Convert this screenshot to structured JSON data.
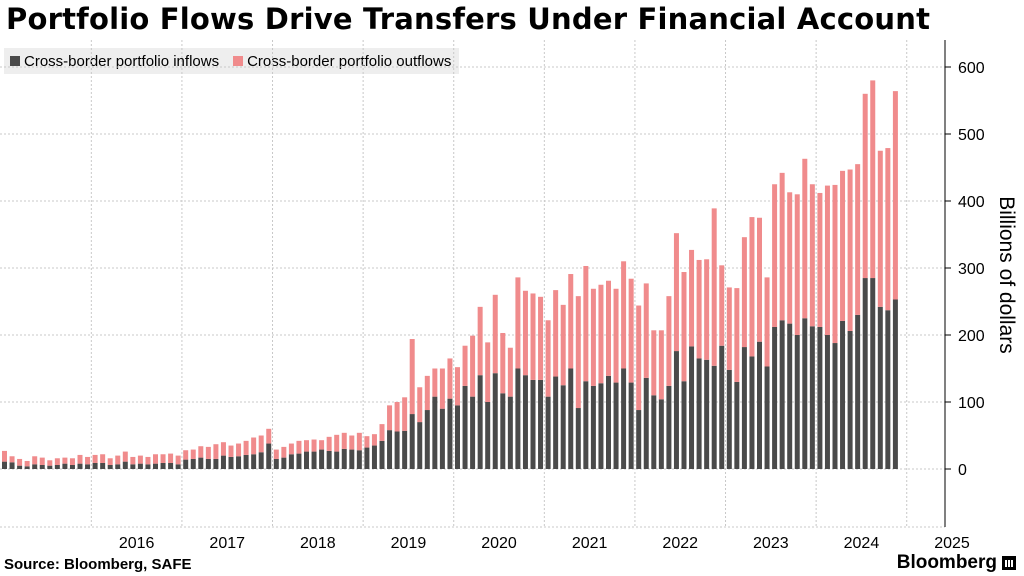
{
  "title": "Portfolio Flows Drive Transfers Under Financial Account",
  "source": "Source: Bloomberg, SAFE",
  "brand": "Bloomberg",
  "colors": {
    "inflows": "#4a4a4a",
    "outflows": "#f08b8c",
    "grid": "#c8c8c8",
    "axis": "#000000"
  },
  "chart_data": {
    "type": "bar",
    "stacked": true,
    "ylabel": "Billions of dollars",
    "ylim": [
      -55,
      640
    ],
    "yticks": [
      0,
      100,
      200,
      300,
      400,
      500,
      600
    ],
    "xticks": [
      "2016",
      "2017",
      "2018",
      "2019",
      "2020",
      "2021",
      "2022",
      "2023",
      "2024",
      "2025"
    ],
    "start": "2015-01",
    "frequency": "monthly",
    "legend_position": "top-left",
    "grid": true,
    "series": [
      {
        "name": "Cross-border portfolio inflows",
        "values": [
          11,
          10,
          5,
          4,
          7,
          6,
          5,
          6,
          8,
          6,
          8,
          7,
          9,
          9,
          6,
          7,
          11,
          7,
          8,
          7,
          8,
          9,
          9,
          7,
          14,
          15,
          17,
          15,
          15,
          20,
          18,
          19,
          21,
          22,
          25,
          38,
          15,
          17,
          22,
          23,
          26,
          26,
          29,
          27,
          26,
          30,
          29,
          28,
          32,
          35,
          42,
          58,
          56,
          57,
          82,
          70,
          88,
          108,
          90,
          105,
          95,
          124,
          108,
          140,
          100,
          143,
          113,
          108,
          150,
          140,
          133,
          133,
          108,
          138,
          125,
          150,
          91,
          131,
          124,
          128,
          139,
          129,
          150,
          129,
          88,
          136,
          110,
          104,
          124,
          176,
          131,
          183,
          165,
          163,
          154,
          184,
          148,
          130,
          182,
          168,
          190,
          153,
          212,
          222,
          217,
          200,
          225,
          213,
          212,
          200,
          188,
          221,
          206,
          230,
          285,
          285,
          242,
          237,
          253
        ]
      },
      {
        "name": "Cross-border portfolio outflows",
        "values": [
          16,
          9,
          10,
          8,
          12,
          11,
          8,
          10,
          9,
          10,
          13,
          11,
          12,
          13,
          10,
          13,
          15,
          11,
          12,
          11,
          14,
          13,
          14,
          13,
          14,
          14,
          17,
          18,
          22,
          20,
          17,
          19,
          21,
          25,
          25,
          22,
          14,
          16,
          16,
          19,
          17,
          18,
          14,
          21,
          25,
          24,
          21,
          26,
          17,
          17,
          25,
          37,
          44,
          50,
          112,
          52,
          51,
          42,
          60,
          60,
          57,
          60,
          91,
          102,
          89,
          117,
          90,
          73,
          136,
          126,
          129,
          124,
          114,
          129,
          120,
          141,
          167,
          172,
          145,
          147,
          142,
          140,
          160,
          155,
          156,
          141,
          97,
          103,
          134,
          176,
          163,
          144,
          147,
          150,
          235,
          120,
          123,
          140,
          164,
          208,
          185,
          133,
          213,
          220,
          196,
          210,
          238,
          212,
          200,
          223,
          236,
          224,
          241,
          225,
          275,
          295,
          233,
          242,
          311
        ]
      }
    ]
  }
}
